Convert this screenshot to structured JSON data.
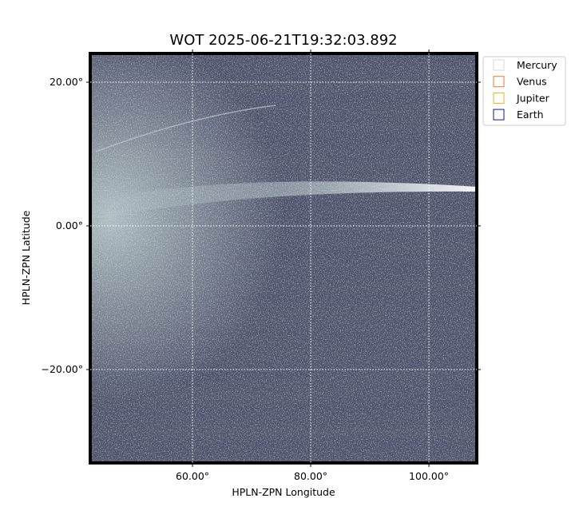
{
  "chart_data": {
    "type": "image",
    "title": "WOT 2025-06-21T19:32:03.892",
    "xlabel": "HPLN-ZPN Longitude",
    "ylabel": "HPLN-ZPN Latitude",
    "xlim": [
      42.7,
      108.1
    ],
    "ylim": [
      -33,
      24
    ],
    "xticks": [
      {
        "value": 60,
        "label": "60.00°"
      },
      {
        "value": 80,
        "label": "80.00°"
      },
      {
        "value": 100,
        "label": "100.00°"
      }
    ],
    "yticks": [
      {
        "value": -20,
        "label": "−20.00°"
      },
      {
        "value": 0,
        "label": "0.00°"
      },
      {
        "value": 20,
        "label": "20.00°"
      }
    ],
    "grid": true,
    "legend_position": "upper-right-outside",
    "series": [
      {
        "name": "Mercury",
        "color": "#d9d9d9"
      },
      {
        "name": "Venus",
        "color": "#e07a3a"
      },
      {
        "name": "Jupiter",
        "color": "#e0b030"
      },
      {
        "name": "Earth",
        "color": "#1a1a80"
      }
    ]
  }
}
